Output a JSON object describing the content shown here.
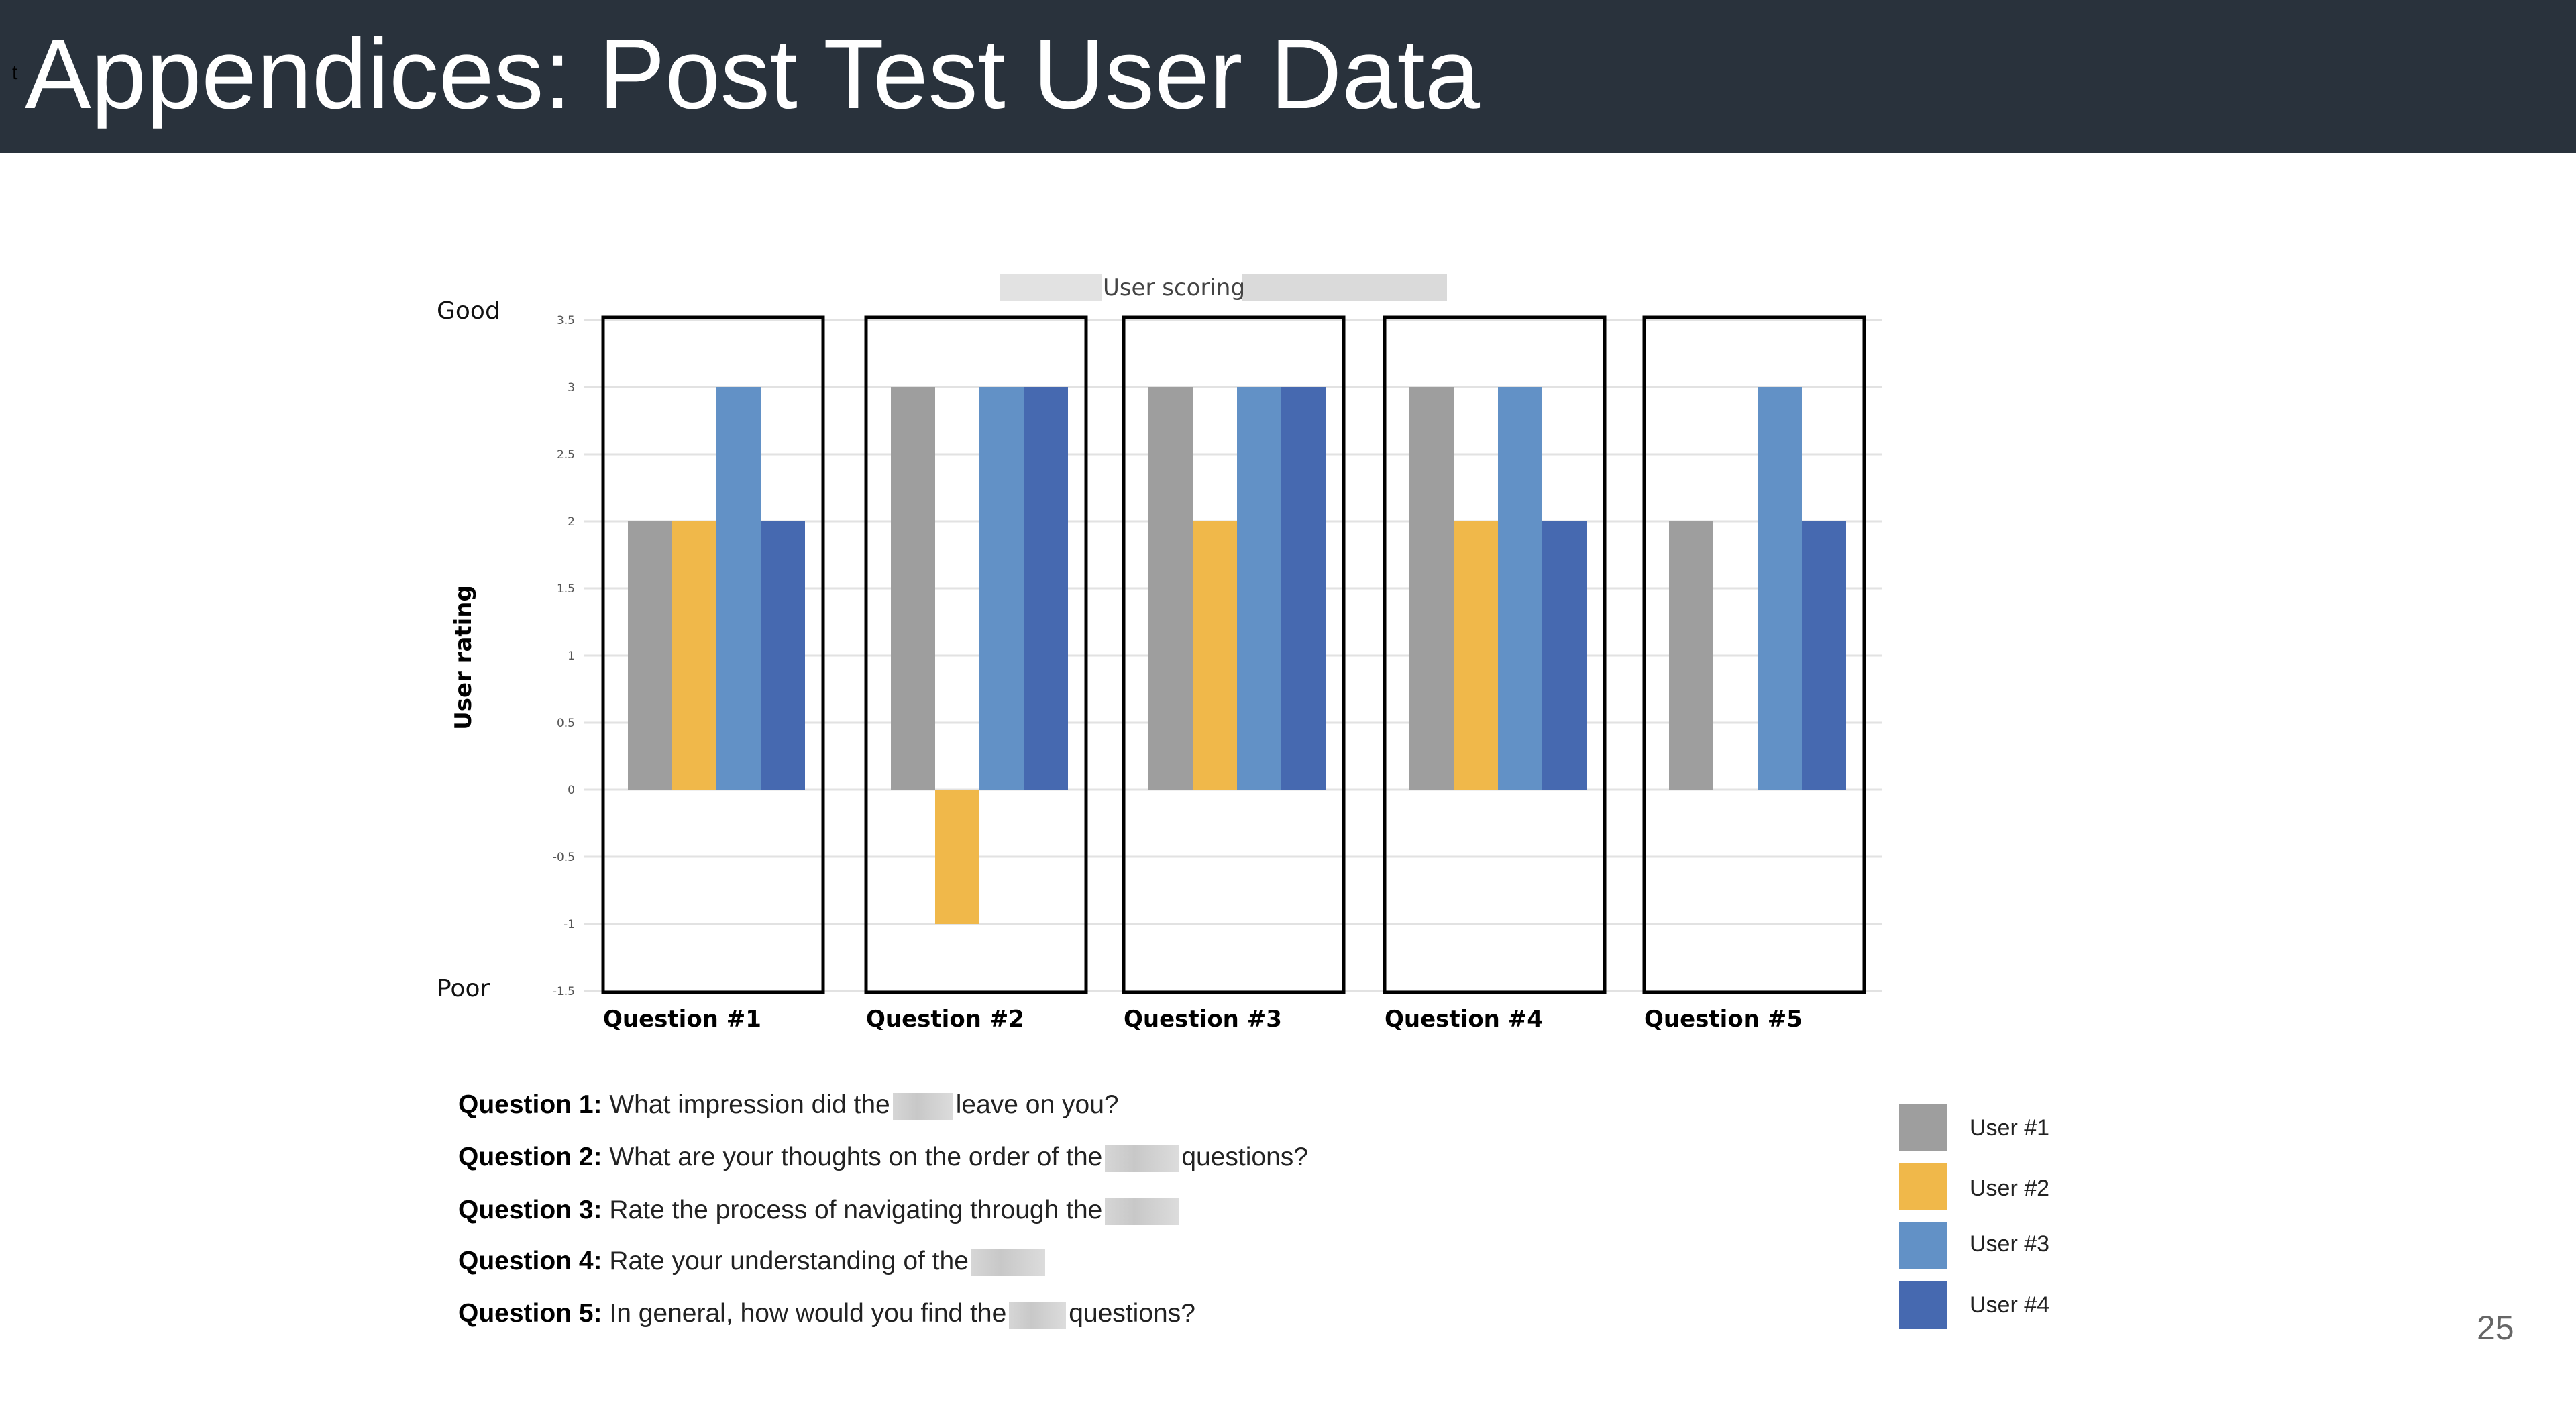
{
  "header": {
    "title": "Appendices: Post Test User Data",
    "stray_mark": "t"
  },
  "page_number": "25",
  "chart_data": {
    "type": "bar",
    "title": "User scoring",
    "ylabel": "User rating",
    "ylabel_top": "Good",
    "ylabel_bottom": "Poor",
    "xlabel": "",
    "ylim": [
      -1.5,
      3.5
    ],
    "yticks": [
      "3.5",
      "3",
      "2.5",
      "2",
      "1.5",
      "1",
      "0.5",
      "0",
      "-0.5",
      "-1",
      "-1.5"
    ],
    "grid": true,
    "legend_position": "bottom-right",
    "categories": [
      "Question #1",
      "Question #2",
      "Question #3",
      "Question #4",
      "Question #5"
    ],
    "series": [
      {
        "name": "User #1",
        "color": "#9e9e9e",
        "values": [
          2,
          3,
          3,
          3,
          2
        ]
      },
      {
        "name": "User #2",
        "color": "#f0b84a",
        "values": [
          2,
          -1,
          2,
          2,
          0
        ]
      },
      {
        "name": "User #3",
        "color": "#6291c6",
        "values": [
          3,
          3,
          3,
          3,
          3
        ]
      },
      {
        "name": "User #4",
        "color": "#4669b0",
        "values": [
          2,
          3,
          3,
          2,
          2
        ]
      }
    ]
  },
  "questions": [
    {
      "label": "Question 1:",
      "before": "What impression did the",
      "after": "leave on you?"
    },
    {
      "label": "Question 2:",
      "before": "What are your thoughts on the order of the",
      "after": "questions?"
    },
    {
      "label": "Question 3:",
      "before": "Rate the process of navigating through the",
      "after": ""
    },
    {
      "label": "Question 4:",
      "before": "Rate your understanding of the",
      "after": ""
    },
    {
      "label": "Question 5:",
      "before": "In general, how would you find the",
      "after": "questions?"
    }
  ]
}
